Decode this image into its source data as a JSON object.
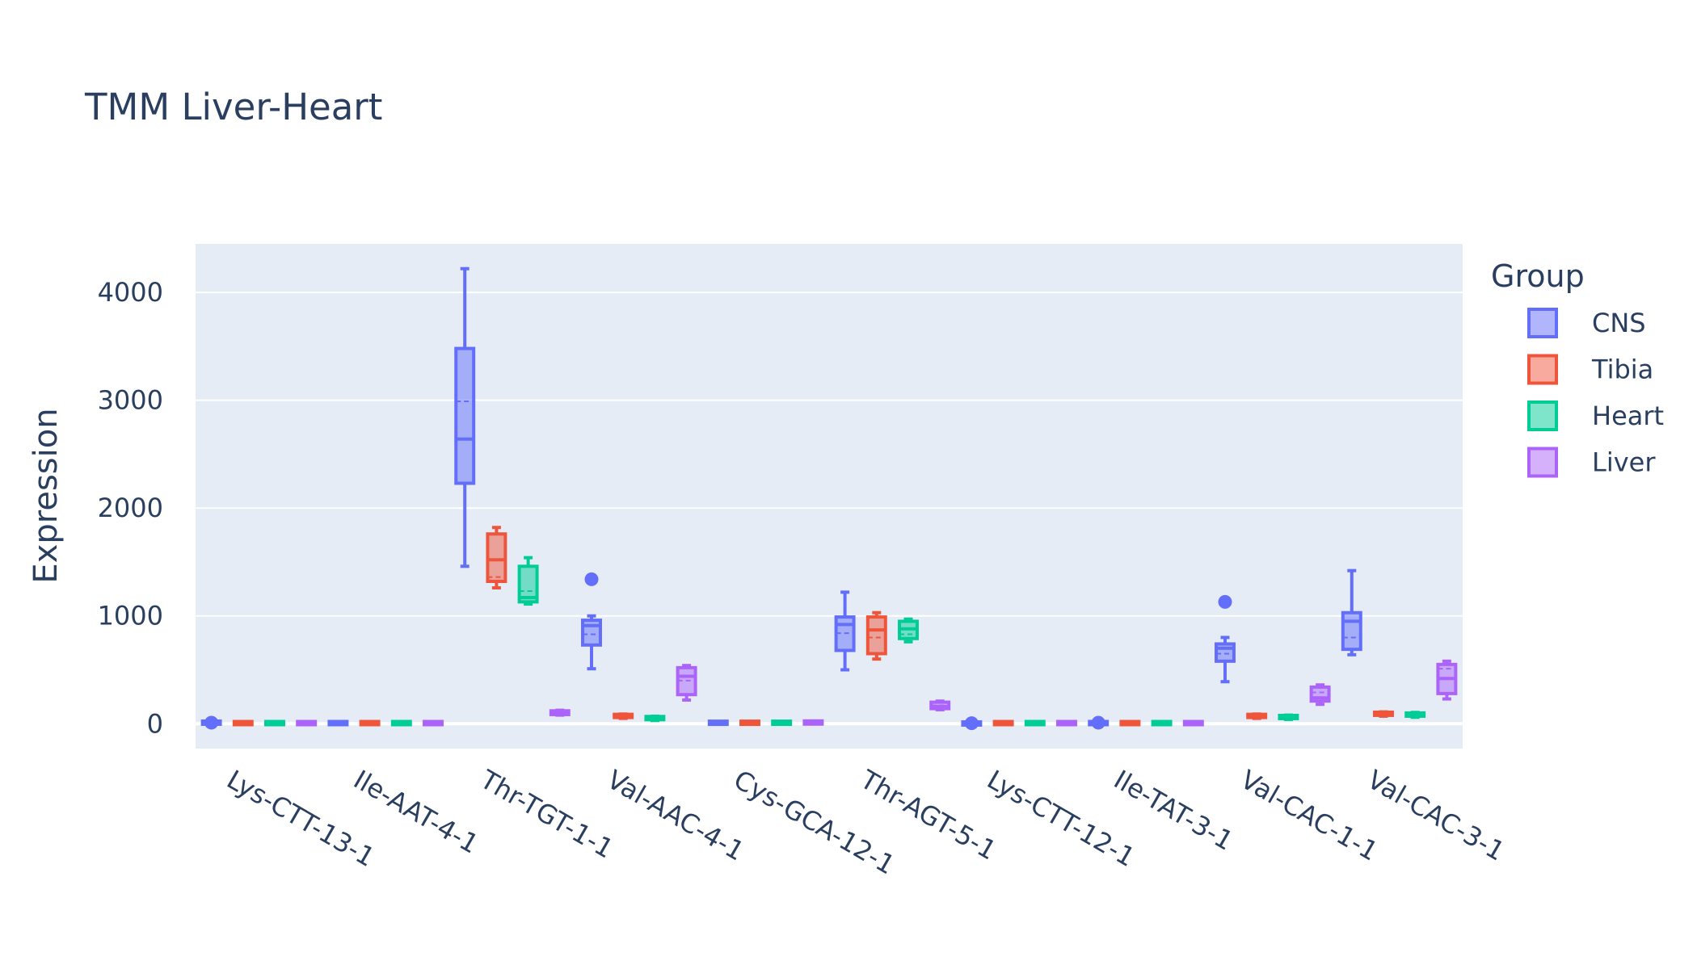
{
  "chart_data": {
    "type": "box",
    "title": "TMM Liver-Heart",
    "xlabel": "",
    "ylabel": "Expression",
    "ylim": [
      -230,
      4450
    ],
    "yticks": [
      0,
      1000,
      2000,
      3000,
      4000
    ],
    "ytick_labels": [
      "0",
      "1000",
      "2000",
      "3000",
      "4000"
    ],
    "grid": true,
    "legend": {
      "title": "Group",
      "placement": "right"
    },
    "categories": [
      "Lys-CTT-13-1",
      "Ile-AAT-4-1",
      "Thr-TGT-1-1",
      "Val-AAC-4-1",
      "Cys-GCA-12-1",
      "Thr-AGT-5-1",
      "Lys-CTT-12-1",
      "Ile-TAT-3-1",
      "Val-CAC-1-1",
      "Val-CAC-3-1"
    ],
    "series": [
      {
        "name": "CNS",
        "color": "#636efa",
        "boxes": [
          {
            "min": 5,
            "q1": 5,
            "median": 5,
            "q3": 15,
            "max": 15,
            "mean": 10,
            "outliers": [
              10
            ]
          },
          {
            "min": 0,
            "q1": 2,
            "median": 5,
            "q3": 10,
            "max": 12,
            "mean": 6,
            "outliers": []
          },
          {
            "min": 1460,
            "q1": 2230,
            "median": 2640,
            "q3": 3480,
            "max": 4220,
            "mean": 2990,
            "outliers": []
          },
          {
            "min": 510,
            "q1": 730,
            "median": 910,
            "q3": 960,
            "max": 1000,
            "mean": 830,
            "outliers": [
              1340
            ]
          },
          {
            "min": 0,
            "q1": 3,
            "median": 6,
            "q3": 15,
            "max": 20,
            "mean": 8,
            "outliers": []
          },
          {
            "min": 500,
            "q1": 680,
            "median": 920,
            "q3": 990,
            "max": 1220,
            "mean": 840,
            "outliers": []
          },
          {
            "min": 0,
            "q1": 0,
            "median": 2,
            "q3": 5,
            "max": 5,
            "mean": 3,
            "outliers": [
              5
            ]
          },
          {
            "min": 0,
            "q1": 2,
            "median": 5,
            "q3": 10,
            "max": 12,
            "mean": 6,
            "outliers": [
              10
            ]
          },
          {
            "min": 390,
            "q1": 580,
            "median": 700,
            "q3": 740,
            "max": 800,
            "mean": 650,
            "outliers": [
              1130
            ]
          },
          {
            "min": 640,
            "q1": 690,
            "median": 950,
            "q3": 1030,
            "max": 1420,
            "mean": 800,
            "outliers": []
          }
        ]
      },
      {
        "name": "Tibia",
        "color": "#ef553b",
        "boxes": [
          {
            "min": 0,
            "q1": 2,
            "median": 5,
            "q3": 10,
            "max": 12,
            "mean": 6,
            "outliers": []
          },
          {
            "min": 0,
            "q1": 2,
            "median": 5,
            "q3": 10,
            "max": 12,
            "mean": 6,
            "outliers": []
          },
          {
            "min": 1260,
            "q1": 1320,
            "median": 1520,
            "q3": 1760,
            "max": 1820,
            "mean": 1360,
            "outliers": []
          },
          {
            "min": 50,
            "q1": 60,
            "median": 75,
            "q3": 85,
            "max": 90,
            "mean": 72,
            "outliers": []
          },
          {
            "min": 0,
            "q1": 3,
            "median": 6,
            "q3": 15,
            "max": 20,
            "mean": 8,
            "outliers": []
          },
          {
            "min": 600,
            "q1": 650,
            "median": 870,
            "q3": 990,
            "max": 1030,
            "mean": 800,
            "outliers": []
          },
          {
            "min": 0,
            "q1": 2,
            "median": 5,
            "q3": 10,
            "max": 12,
            "mean": 6,
            "outliers": []
          },
          {
            "min": 0,
            "q1": 2,
            "median": 5,
            "q3": 10,
            "max": 12,
            "mean": 6,
            "outliers": []
          },
          {
            "min": 50,
            "q1": 60,
            "median": 75,
            "q3": 85,
            "max": 90,
            "mean": 72,
            "outliers": []
          },
          {
            "min": 70,
            "q1": 80,
            "median": 95,
            "q3": 105,
            "max": 110,
            "mean": 92,
            "outliers": []
          }
        ]
      },
      {
        "name": "Heart",
        "color": "#00cc96",
        "boxes": [
          {
            "min": 0,
            "q1": 2,
            "median": 5,
            "q3": 10,
            "max": 12,
            "mean": 6,
            "outliers": []
          },
          {
            "min": 0,
            "q1": 2,
            "median": 5,
            "q3": 10,
            "max": 12,
            "mean": 6,
            "outliers": []
          },
          {
            "min": 1110,
            "q1": 1130,
            "median": 1170,
            "q3": 1460,
            "max": 1540,
            "mean": 1230,
            "outliers": []
          },
          {
            "min": 30,
            "q1": 40,
            "median": 55,
            "q3": 65,
            "max": 70,
            "mean": 52,
            "outliers": []
          },
          {
            "min": 0,
            "q1": 3,
            "median": 6,
            "q3": 15,
            "max": 20,
            "mean": 8,
            "outliers": []
          },
          {
            "min": 760,
            "q1": 790,
            "median": 880,
            "q3": 950,
            "max": 970,
            "mean": 830,
            "outliers": []
          },
          {
            "min": 0,
            "q1": 2,
            "median": 5,
            "q3": 10,
            "max": 12,
            "mean": 6,
            "outliers": []
          },
          {
            "min": 0,
            "q1": 2,
            "median": 5,
            "q3": 10,
            "max": 12,
            "mean": 6,
            "outliers": []
          },
          {
            "min": 40,
            "q1": 50,
            "median": 65,
            "q3": 75,
            "max": 80,
            "mean": 62,
            "outliers": []
          },
          {
            "min": 60,
            "q1": 70,
            "median": 90,
            "q3": 100,
            "max": 105,
            "mean": 88,
            "outliers": []
          }
        ]
      },
      {
        "name": "Liver",
        "color": "#ab63fa",
        "boxes": [
          {
            "min": 0,
            "q1": 2,
            "median": 5,
            "q3": 10,
            "max": 12,
            "mean": 6,
            "outliers": []
          },
          {
            "min": 0,
            "q1": 2,
            "median": 5,
            "q3": 10,
            "max": 12,
            "mean": 6,
            "outliers": []
          },
          {
            "min": 80,
            "q1": 85,
            "median": 100,
            "q3": 120,
            "max": 125,
            "mean": 100,
            "outliers": []
          },
          {
            "min": 220,
            "q1": 270,
            "median": 440,
            "q3": 520,
            "max": 540,
            "mean": 400,
            "outliers": []
          },
          {
            "min": 0,
            "q1": 5,
            "median": 10,
            "q3": 18,
            "max": 22,
            "mean": 12,
            "outliers": []
          },
          {
            "min": 130,
            "q1": 140,
            "median": 160,
            "q3": 200,
            "max": 210,
            "mean": 170,
            "outliers": []
          },
          {
            "min": 0,
            "q1": 2,
            "median": 5,
            "q3": 10,
            "max": 12,
            "mean": 6,
            "outliers": []
          },
          {
            "min": 0,
            "q1": 2,
            "median": 5,
            "q3": 10,
            "max": 12,
            "mean": 6,
            "outliers": []
          },
          {
            "min": 180,
            "q1": 210,
            "median": 240,
            "q3": 340,
            "max": 360,
            "mean": 290,
            "outliers": []
          },
          {
            "min": 230,
            "q1": 280,
            "median": 420,
            "q3": 550,
            "max": 580,
            "mean": 510,
            "outliers": []
          }
        ]
      }
    ]
  }
}
